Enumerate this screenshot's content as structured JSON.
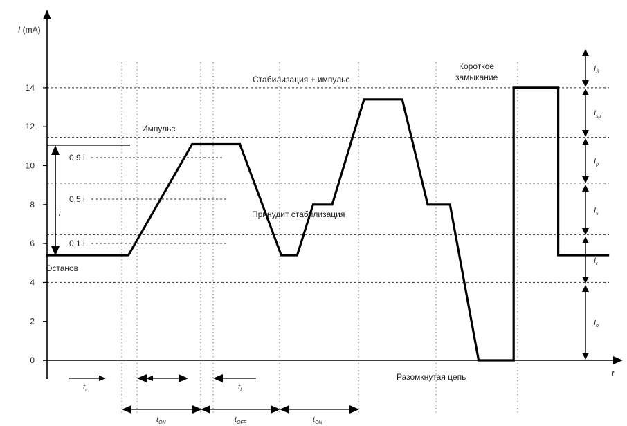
{
  "y_axis": {
    "label_symbol": "I",
    "label_unit": " (mA)",
    "ticks": [
      "0",
      "2",
      "4",
      "6",
      "8",
      "10",
      "12",
      "14"
    ]
  },
  "x_axis": {
    "label": "t"
  },
  "labels": {
    "ostanov": "Останов",
    "impuls": "Импульс",
    "stab_impuls": "Стабилизация + импульс",
    "prinudit": "Принудит стабилизация",
    "korotkoe_1": "Короткое",
    "korotkoe_2": "замыкание",
    "razomknutaya": "Разомкнутая цепь",
    "level_09": "0,9 i",
    "level_05": "0,5 i",
    "level_01": "0,1 i",
    "amp_i": "i"
  },
  "right_bands": [
    {
      "main": "I",
      "sub": "S"
    },
    {
      "main": "I",
      "sub": "sp"
    },
    {
      "main": "I",
      "sub": "p"
    },
    {
      "main": "I",
      "sub": "s"
    },
    {
      "main": "I",
      "sub": "r"
    },
    {
      "main": "I",
      "sub": "o"
    }
  ],
  "time_marks": {
    "tr": {
      "main": "t",
      "sub": "r"
    },
    "tf": {
      "main": "t",
      "sub": "f"
    },
    "ton": {
      "main": "t",
      "sub": "ON"
    },
    "toff": {
      "main": "t",
      "sub": "OFF"
    }
  },
  "chart_data": {
    "type": "line",
    "xlabel": "t",
    "ylabel": "I (mA)",
    "ylim": [
      0,
      14
    ],
    "yticks": [
      0,
      2,
      4,
      6,
      8,
      10,
      12,
      14
    ],
    "grid_levels": [
      14,
      11.45,
      9.1,
      6.45,
      4
    ],
    "series": [
      {
        "points": [
          [
            0,
            5.4
          ],
          [
            1.3,
            5.4
          ],
          [
            2.3,
            11.1
          ],
          [
            3.05,
            11.1
          ],
          [
            3.7,
            5.4
          ],
          [
            3.95,
            5.4
          ],
          [
            4.2,
            8.0
          ],
          [
            4.5,
            8.0
          ],
          [
            5.0,
            13.4
          ],
          [
            5.6,
            13.4
          ],
          [
            6.0,
            8.0
          ],
          [
            6.35,
            8.0
          ],
          [
            6.8,
            0
          ],
          [
            7.35,
            0
          ],
          [
            7.35,
            14.0
          ],
          [
            8.05,
            14.0
          ],
          [
            8.05,
            5.4
          ],
          [
            8.85,
            5.4
          ]
        ]
      }
    ]
  }
}
